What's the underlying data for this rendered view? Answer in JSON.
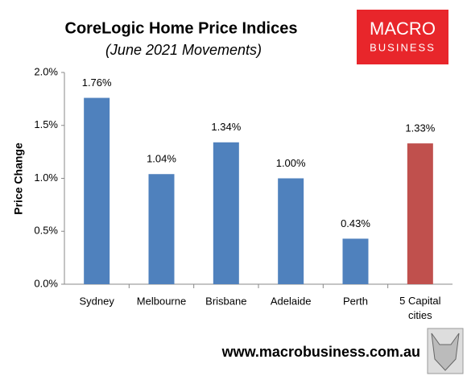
{
  "chart_data": {
    "type": "bar",
    "title": "CoreLogic Home Price Indices",
    "subtitle": "(June 2021 Movements)",
    "y_label": "Price Change",
    "categories": [
      "Sydney",
      "Melbourne",
      "Brisbane",
      "Adelaide",
      "Perth",
      "5 Capital cities"
    ],
    "values": [
      1.76,
      1.04,
      1.34,
      1.0,
      0.43,
      1.33
    ],
    "value_labels": [
      "1.76%",
      "1.04%",
      "1.34%",
      "1.00%",
      "0.43%",
      "1.33%"
    ],
    "colors": [
      "#4f81bd",
      "#4f81bd",
      "#4f81bd",
      "#4f81bd",
      "#4f81bd",
      "#c0504d"
    ],
    "ylim": [
      0,
      2
    ],
    "yticks": [
      {
        "value": 0,
        "label": "0.0%"
      },
      {
        "value": 0.5,
        "label": "0.5%"
      },
      {
        "value": 1,
        "label": "1.0%"
      },
      {
        "value": 1.5,
        "label": "1.5%"
      },
      {
        "value": 2,
        "label": "2.0%"
      }
    ],
    "grid": false
  },
  "logo": {
    "line1": "MACRO",
    "line2": "BUSINESS"
  },
  "footer": "www.macrobusiness.com.au"
}
